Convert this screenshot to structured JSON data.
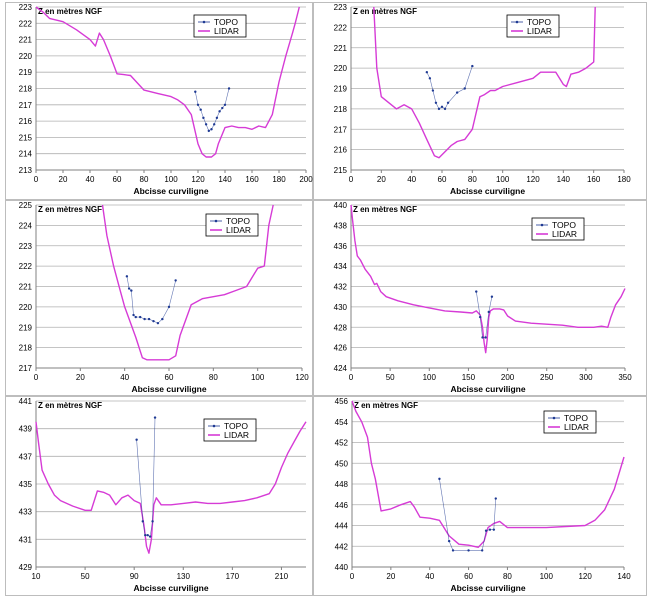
{
  "colors": {
    "topo": "#1f3a93",
    "lidar": "#d63bd6",
    "grid": "#b0b0b0",
    "axis": "#808080"
  },
  "chart_data": [
    {
      "type": "line",
      "ylabel": "Z en mètres NGF",
      "xlabel": "Abcisse curviligne",
      "legend": [
        "TOPO",
        "LIDAR"
      ],
      "legend_position": "top-right",
      "grid": true,
      "xlim": [
        0,
        200
      ],
      "ylim": [
        213,
        223
      ],
      "xticks": [
        0,
        20,
        40,
        60,
        80,
        100,
        120,
        140,
        160,
        180,
        200
      ],
      "yticks": [
        213,
        214,
        215,
        216,
        217,
        218,
        219,
        220,
        221,
        222,
        223
      ],
      "series": [
        {
          "name": "LIDAR",
          "x": [
            0,
            5,
            10,
            20,
            30,
            40,
            44,
            47,
            50,
            55,
            60,
            65,
            70,
            80,
            90,
            100,
            105,
            110,
            115,
            120,
            123,
            126,
            130,
            133,
            135,
            140,
            145,
            150,
            155,
            160,
            165,
            170,
            175,
            180,
            185,
            190,
            192,
            195
          ],
          "y": [
            223,
            222.7,
            222.3,
            222.1,
            221.6,
            221.0,
            220.6,
            221.4,
            221.0,
            220.0,
            218.9,
            218.85,
            218.8,
            217.9,
            217.7,
            217.5,
            217.3,
            217.0,
            216.4,
            214.6,
            214.0,
            213.8,
            213.8,
            214.0,
            214.6,
            215.6,
            215.7,
            215.6,
            215.6,
            215.5,
            215.7,
            215.6,
            216.4,
            218.4,
            220.0,
            221.4,
            222.0,
            223
          ]
        },
        {
          "name": "TOPO",
          "x": [
            118,
            120,
            122,
            124,
            126,
            128,
            130,
            132,
            134,
            136,
            138,
            140,
            143
          ],
          "y": [
            217.8,
            217.0,
            216.7,
            216.2,
            215.8,
            215.4,
            215.5,
            215.8,
            216.2,
            216.6,
            216.8,
            217.0,
            218.0
          ]
        }
      ]
    },
    {
      "type": "line",
      "ylabel": "Z en mètres NGF",
      "xlabel": "Abcisse curviligne",
      "legend": [
        "TOPO",
        "LIDAR"
      ],
      "legend_position": "top-right",
      "grid": true,
      "xlim": [
        0,
        180
      ],
      "ylim": [
        215,
        223
      ],
      "xticks": [
        0,
        20,
        40,
        60,
        80,
        100,
        120,
        140,
        160,
        180
      ],
      "yticks": [
        215,
        216,
        217,
        218,
        219,
        220,
        221,
        222,
        223
      ],
      "series": [
        {
          "name": "LIDAR",
          "x": [
            15,
            17,
            20,
            25,
            30,
            35,
            40,
            45,
            50,
            55,
            58,
            62,
            66,
            70,
            75,
            80,
            85,
            88,
            92,
            95,
            100,
            110,
            120,
            125,
            130,
            135,
            140,
            142,
            145,
            150,
            155,
            160,
            161
          ],
          "y": [
            223,
            220.0,
            218.6,
            218.3,
            218.0,
            218.2,
            218.0,
            217.3,
            216.5,
            215.7,
            215.6,
            215.9,
            216.2,
            216.4,
            216.5,
            217.0,
            218.6,
            218.7,
            218.9,
            218.9,
            219.1,
            219.3,
            219.5,
            219.8,
            219.8,
            219.8,
            219.2,
            219.1,
            219.7,
            219.8,
            220.0,
            220.3,
            223
          ]
        },
        {
          "name": "TOPO",
          "x": [
            50,
            52,
            54,
            56,
            58,
            60,
            62,
            64,
            70,
            75,
            80
          ],
          "y": [
            219.8,
            219.5,
            218.9,
            218.3,
            218.0,
            218.1,
            218.0,
            218.3,
            218.8,
            219.0,
            220.1
          ]
        }
      ]
    },
    {
      "type": "line",
      "ylabel": "Z en mètres NGF",
      "xlabel": "Abcisse curviligne",
      "legend": [
        "TOPO",
        "LIDAR"
      ],
      "legend_position": "top-right",
      "grid": true,
      "xlim": [
        0,
        120
      ],
      "ylim": [
        217,
        225
      ],
      "xticks": [
        0,
        20,
        40,
        60,
        80,
        100,
        120
      ],
      "yticks": [
        217,
        218,
        219,
        220,
        221,
        222,
        223,
        224,
        225
      ],
      "series": [
        {
          "name": "LIDAR",
          "x": [
            30,
            32,
            35,
            38,
            40,
            45,
            48,
            50,
            55,
            60,
            63,
            65,
            70,
            75,
            80,
            85,
            90,
            95,
            100,
            103,
            105,
            107
          ],
          "y": [
            225,
            223.5,
            222.0,
            220.8,
            220.0,
            218.5,
            217.5,
            217.4,
            217.4,
            217.4,
            217.6,
            218.6,
            220.1,
            220.4,
            220.5,
            220.6,
            220.8,
            221.0,
            221.9,
            222.0,
            224.0,
            225
          ]
        },
        {
          "name": "TOPO",
          "x": [
            41,
            42,
            43,
            44,
            45,
            47,
            49,
            51,
            53,
            55,
            57,
            60,
            63
          ],
          "y": [
            221.5,
            220.9,
            220.8,
            219.6,
            219.5,
            219.5,
            219.4,
            219.4,
            219.3,
            219.2,
            219.4,
            220.0,
            221.3
          ]
        }
      ]
    },
    {
      "type": "line",
      "ylabel": "Z en mètres NGF",
      "xlabel": "Abcisse curviligne",
      "legend": [
        "TOPO",
        "LIDAR"
      ],
      "legend_position": "top-right",
      "grid": true,
      "xlim": [
        0,
        350
      ],
      "ylim": [
        424,
        440
      ],
      "xticks": [
        0,
        50,
        100,
        150,
        200,
        250,
        300,
        350
      ],
      "yticks": [
        424,
        426,
        428,
        430,
        432,
        434,
        436,
        438,
        440
      ],
      "series": [
        {
          "name": "LIDAR",
          "x": [
            0,
            2,
            5,
            8,
            12,
            18,
            25,
            30,
            33,
            38,
            45,
            60,
            80,
            100,
            120,
            140,
            155,
            160,
            165,
            168,
            170,
            172,
            174,
            176,
            178,
            182,
            190,
            195,
            200,
            210,
            230,
            250,
            270,
            290,
            310,
            320,
            328,
            332,
            338,
            345,
            350
          ],
          "y": [
            440,
            438.5,
            436.5,
            435.0,
            434.6,
            433.7,
            433.0,
            432.2,
            432.3,
            431.5,
            431.0,
            430.6,
            430.2,
            429.9,
            429.6,
            429.5,
            429.4,
            429.6,
            429.2,
            428.0,
            426.5,
            425.5,
            426.8,
            429.0,
            429.6,
            429.8,
            429.8,
            429.7,
            429.1,
            428.6,
            428.4,
            428.3,
            428.2,
            428.0,
            428.0,
            428.1,
            428.0,
            429.0,
            430.2,
            431.0,
            431.8
          ]
        },
        {
          "name": "TOPO",
          "x": [
            160,
            165,
            168,
            172,
            176,
            180
          ],
          "y": [
            431.5,
            429.0,
            427.0,
            427.0,
            429.5,
            431.0
          ]
        }
      ]
    },
    {
      "type": "line",
      "ylabel": "Z en mètres NGF",
      "xlabel": "Abcisse curviligne",
      "legend": [
        "TOPO",
        "LIDAR"
      ],
      "legend_position": "top-right",
      "grid": true,
      "xlim": [
        10,
        230
      ],
      "ylim": [
        429,
        441
      ],
      "xticks": [
        10,
        50,
        90,
        130,
        170,
        210
      ],
      "yticks": [
        429,
        431,
        433,
        435,
        437,
        439,
        441
      ],
      "series": [
        {
          "name": "LIDAR",
          "x": [
            10,
            12,
            15,
            20,
            25,
            30,
            40,
            50,
            55,
            60,
            65,
            70,
            75,
            80,
            85,
            90,
            95,
            98,
            100,
            102,
            104,
            106,
            108,
            112,
            120,
            130,
            140,
            150,
            160,
            170,
            180,
            190,
            200,
            205,
            210,
            215,
            220,
            225,
            230
          ],
          "y": [
            439.5,
            438.0,
            436.0,
            435.0,
            434.2,
            433.8,
            433.4,
            433.1,
            433.1,
            434.5,
            434.4,
            434.2,
            433.5,
            434.0,
            434.2,
            433.8,
            433.6,
            432.0,
            430.5,
            430.0,
            431.0,
            433.5,
            434.0,
            433.5,
            433.5,
            433.6,
            433.7,
            433.6,
            433.6,
            433.7,
            433.8,
            434.0,
            434.3,
            435.0,
            436.2,
            437.2,
            438.0,
            438.8,
            439.5
          ]
        },
        {
          "name": "TOPO",
          "x": [
            92,
            97,
            99,
            101,
            103,
            105,
            107
          ],
          "y": [
            438.2,
            432.3,
            431.3,
            431.3,
            431.2,
            432.3,
            439.8
          ]
        }
      ]
    },
    {
      "type": "line",
      "ylabel": "Z en mètres NGF",
      "xlabel": "Abcisse curviligne",
      "legend": [
        "TOPO",
        "LIDAR"
      ],
      "legend_position": "top-right",
      "grid": true,
      "xlim": [
        0,
        140
      ],
      "ylim": [
        440,
        456
      ],
      "xticks": [
        0,
        20,
        40,
        60,
        80,
        100,
        120,
        140
      ],
      "yticks": [
        440,
        442,
        444,
        446,
        448,
        450,
        452,
        454,
        456
      ],
      "series": [
        {
          "name": "LIDAR",
          "x": [
            0,
            2,
            5,
            8,
            10,
            12,
            15,
            20,
            25,
            30,
            32,
            35,
            40,
            45,
            50,
            55,
            60,
            65,
            68,
            70,
            73,
            76,
            80,
            90,
            100,
            110,
            120,
            125,
            130,
            135,
            140
          ],
          "y": [
            456,
            455,
            454,
            452.5,
            450.0,
            448.5,
            445.4,
            445.6,
            446.0,
            446.3,
            445.8,
            444.8,
            444.7,
            444.5,
            443.0,
            442.2,
            442.1,
            441.9,
            442.5,
            443.8,
            444.2,
            444.4,
            443.8,
            443.8,
            443.8,
            443.9,
            444.0,
            444.5,
            445.5,
            447.5,
            450.6
          ]
        },
        {
          "name": "TOPO",
          "x": [
            45,
            50,
            52,
            60,
            67,
            69,
            71,
            73,
            74
          ],
          "y": [
            448.5,
            442.5,
            441.6,
            441.6,
            441.6,
            443.5,
            443.6,
            443.6,
            446.6
          ]
        }
      ]
    }
  ]
}
